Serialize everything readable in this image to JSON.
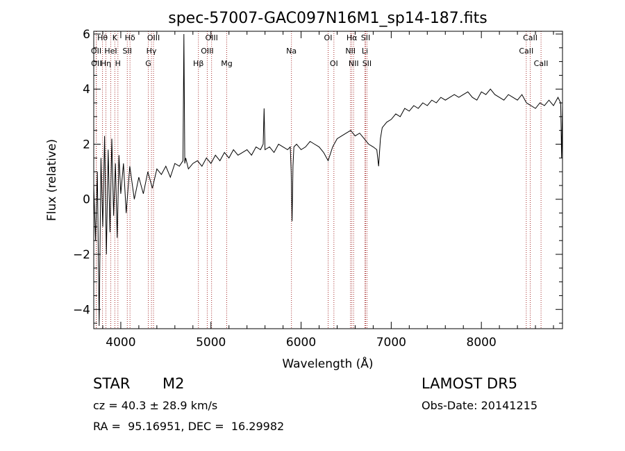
{
  "chart_data": {
    "type": "line",
    "title": "spec-57007-GAC097N16M1_sp14-187.fits",
    "xlabel": "Wavelength (Å)",
    "ylabel": "Flux (relative)",
    "xlim": [
      3700,
      8900
    ],
    "ylim": [
      -4.7,
      6.1
    ],
    "xticks_major": [
      4000,
      5000,
      6000,
      7000,
      8000
    ],
    "yticks_major": [
      -4,
      -2,
      0,
      2,
      4,
      6
    ],
    "x_minor_step": 200,
    "y_minor_step": 0.5,
    "grid": false,
    "colors": {
      "spectrum": "#000000",
      "line_marker": "#a52a2a"
    },
    "series": [
      {
        "x": [
          3700,
          3720,
          3740,
          3760,
          3780,
          3800,
          3820,
          3840,
          3860,
          3880,
          3900,
          3920,
          3940,
          3960,
          3980,
          4000,
          4030,
          4060,
          4100,
          4150,
          4200,
          4250,
          4300,
          4350,
          4400,
          4450,
          4500,
          4550,
          4600,
          4650,
          4690,
          4700,
          4710,
          4720,
          4750,
          4800,
          4850,
          4900,
          4950,
          5000,
          5050,
          5100,
          5150,
          5200,
          5250,
          5300,
          5350,
          5400,
          5450,
          5500,
          5550,
          5580,
          5590,
          5600,
          5650,
          5700,
          5750,
          5800,
          5850,
          5880,
          5890,
          5900,
          5910,
          5920,
          5950,
          6000,
          6050,
          6100,
          6150,
          6200,
          6250,
          6300,
          6350,
          6400,
          6450,
          6500,
          6550,
          6600,
          6650,
          6700,
          6750,
          6800,
          6840,
          6860,
          6880,
          6900,
          6950,
          7000,
          7050,
          7100,
          7150,
          7200,
          7250,
          7300,
          7350,
          7400,
          7450,
          7500,
          7550,
          7600,
          7650,
          7700,
          7750,
          7800,
          7850,
          7900,
          7950,
          8000,
          8050,
          8100,
          8150,
          8200,
          8250,
          8300,
          8350,
          8400,
          8450,
          8500,
          8550,
          8600,
          8650,
          8700,
          8750,
          8800,
          8850,
          8880,
          8890,
          8900
        ],
        "y": [
          0.5,
          -1.5,
          1.0,
          -4.6,
          1.5,
          -1.0,
          2.3,
          -2.0,
          1.8,
          -1.2,
          2.2,
          -0.6,
          1.3,
          -1.4,
          1.6,
          0.2,
          1.3,
          -0.5,
          1.2,
          0.0,
          0.8,
          0.2,
          1.0,
          0.4,
          1.1,
          0.9,
          1.2,
          0.8,
          1.3,
          1.2,
          1.4,
          6.0,
          1.3,
          1.5,
          1.1,
          1.3,
          1.4,
          1.2,
          1.5,
          1.3,
          1.6,
          1.4,
          1.7,
          1.5,
          1.8,
          1.6,
          1.7,
          1.8,
          1.6,
          1.9,
          1.8,
          2.0,
          3.3,
          1.8,
          1.9,
          1.7,
          2.0,
          1.9,
          1.8,
          1.9,
          1.0,
          -0.8,
          1.2,
          1.9,
          2.0,
          1.8,
          1.9,
          2.1,
          2.0,
          1.9,
          1.7,
          1.4,
          1.9,
          2.2,
          2.3,
          2.4,
          2.5,
          2.3,
          2.4,
          2.2,
          2.0,
          1.9,
          1.8,
          1.2,
          2.2,
          2.6,
          2.8,
          2.9,
          3.1,
          3.0,
          3.3,
          3.2,
          3.4,
          3.3,
          3.5,
          3.4,
          3.6,
          3.5,
          3.7,
          3.6,
          3.7,
          3.8,
          3.7,
          3.8,
          3.9,
          3.7,
          3.6,
          3.9,
          3.8,
          4.0,
          3.8,
          3.7,
          3.6,
          3.8,
          3.7,
          3.6,
          3.8,
          3.5,
          3.4,
          3.3,
          3.5,
          3.4,
          3.6,
          3.4,
          3.7,
          3.5,
          1.5,
          3.4
        ]
      }
    ],
    "line_markers": [
      {
        "label": "Hθ",
        "x": 3797,
        "row": 1
      },
      {
        "label": "K",
        "x": 3934,
        "row": 1
      },
      {
        "label": "Hδ",
        "x": 4102,
        "row": 1
      },
      {
        "label": "OIII",
        "x": 4363,
        "row": 1
      },
      {
        "label": "OIII",
        "x": 5007,
        "row": 1
      },
      {
        "label": "OI",
        "x": 6300,
        "row": 1
      },
      {
        "label": "Hα",
        "x": 6563,
        "row": 1
      },
      {
        "label": "SII",
        "x": 6716,
        "row": 1
      },
      {
        "label": "CaII",
        "x": 8542,
        "row": 1
      },
      {
        "label": "OII",
        "x": 3727,
        "row": 2
      },
      {
        "label": "HeI",
        "x": 3889,
        "row": 2
      },
      {
        "label": "SII",
        "x": 4072,
        "row": 2
      },
      {
        "label": "Hγ",
        "x": 4340,
        "row": 2
      },
      {
        "label": "OIII",
        "x": 4959,
        "row": 2
      },
      {
        "label": "Na",
        "x": 5893,
        "row": 2
      },
      {
        "label": "NII",
        "x": 6548,
        "row": 2
      },
      {
        "label": "Li",
        "x": 6708,
        "row": 2
      },
      {
        "label": "CaII",
        "x": 8498,
        "row": 2
      },
      {
        "label": "OII",
        "x": 3729,
        "row": 3
      },
      {
        "label": "Hη",
        "x": 3835,
        "row": 3
      },
      {
        "label": "H",
        "x": 3968,
        "row": 3
      },
      {
        "label": "G",
        "x": 4305,
        "row": 3
      },
      {
        "label": "Hβ",
        "x": 4861,
        "row": 3
      },
      {
        "label": "Mg",
        "x": 5175,
        "row": 3
      },
      {
        "label": "OI",
        "x": 6364,
        "row": 3
      },
      {
        "label": "NII",
        "x": 6583,
        "row": 3
      },
      {
        "label": "SII",
        "x": 6731,
        "row": 3
      },
      {
        "label": "CaII",
        "x": 8662,
        "row": 3
      }
    ]
  },
  "info": {
    "object_class": "STAR",
    "subclass": "M2",
    "survey": "LAMOST DR5",
    "cz": "cz = 40.3 ± 28.9 km/s",
    "obs_date": "Obs-Date: 20141215",
    "coords": "RA =  95.16951, DEC =  16.29982"
  }
}
